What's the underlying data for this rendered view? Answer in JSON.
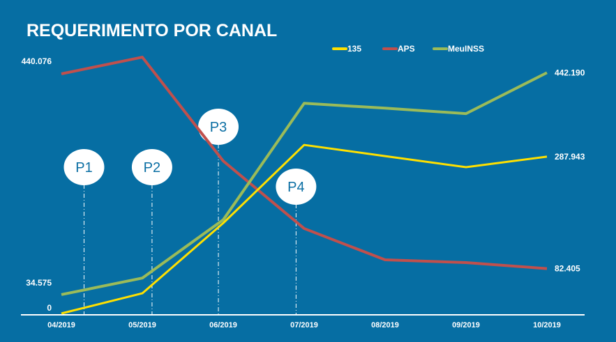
{
  "chart_data": {
    "type": "line",
    "title": "REQUERIMENTO POR CANAL",
    "categories": [
      "04/2019",
      "05/2019",
      "06/2019",
      "07/2019",
      "08/2019",
      "09/2019",
      "10/2019"
    ],
    "series": [
      {
        "name": "135",
        "color": "#ffe000",
        "values": [
          0,
          37000,
          166000,
          309500,
          289000,
          268600,
          287943
        ],
        "labels": [
          "0",
          "",
          "",
          "",
          "",
          "",
          "287.943"
        ]
      },
      {
        "name": "APS",
        "color": "#c0504d",
        "values": [
          440076,
          470700,
          280000,
          156000,
          98500,
          93400,
          82405
        ],
        "labels": [
          "440.076",
          "",
          "",
          "",
          "",
          "",
          "82.405"
        ]
      },
      {
        "name": "MeuINSS",
        "color": "#9bbb59",
        "values": [
          34575,
          65000,
          172000,
          386000,
          377000,
          367000,
          442190
        ],
        "labels": [
          "34.575",
          "",
          "",
          "",
          "",
          "",
          "442.190"
        ]
      }
    ],
    "ylim": [
      0,
      440076
    ],
    "grid": false,
    "legend": "top-right",
    "annotations": [
      {
        "label": "P1",
        "x_between": [
          "04/2019",
          "05/2019"
        ],
        "pos": 0.28
      },
      {
        "label": "P2",
        "x_between": [
          "05/2019",
          "06/2019"
        ],
        "pos": 0.12
      },
      {
        "label": "P3",
        "x_between": [
          "05/2019",
          "06/2019"
        ],
        "pos": 0.94
      },
      {
        "label": "P4",
        "x_between": [
          "06/2019",
          "07/2019"
        ],
        "pos": 0.9
      }
    ]
  }
}
